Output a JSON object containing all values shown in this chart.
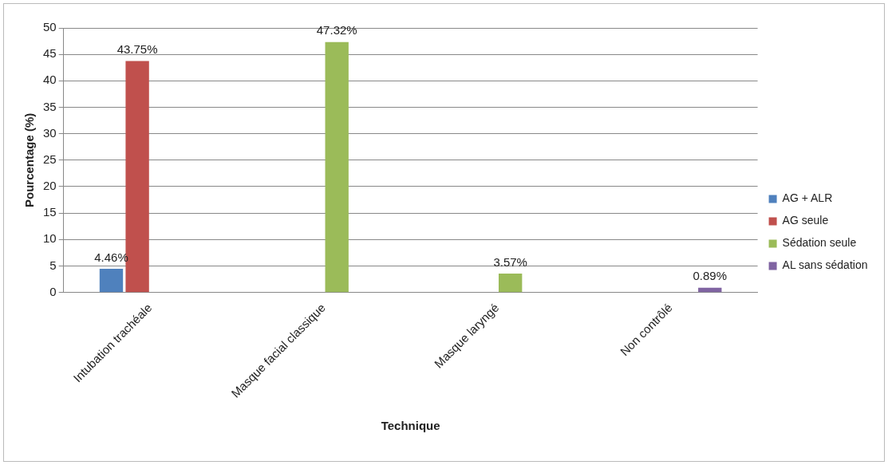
{
  "chart_data": {
    "type": "bar",
    "xlabel": "Technique",
    "ylabel": "Pourcentage (%)",
    "categories": [
      "Intubation trachéale",
      "Masque facial classique",
      "Masque laryngé",
      "Non contrôlé"
    ],
    "series": [
      {
        "name": "AG + ALR",
        "color": "#4f81bd",
        "values": [
          4.46,
          null,
          null,
          null
        ],
        "value_labels": [
          "4.46%",
          null,
          null,
          null
        ]
      },
      {
        "name": "AG seule",
        "color": "#c0504d",
        "values": [
          43.75,
          null,
          null,
          null
        ],
        "value_labels": [
          "43.75%",
          null,
          null,
          null
        ]
      },
      {
        "name": "Sédation seule",
        "color": "#9bbb59",
        "values": [
          null,
          47.32,
          3.57,
          null
        ],
        "value_labels": [
          null,
          "47.32%",
          "3.57%",
          null
        ]
      },
      {
        "name": "AL sans sédation",
        "color": "#8064a2",
        "values": [
          null,
          null,
          null,
          0.89
        ],
        "value_labels": [
          null,
          null,
          null,
          "0.89%"
        ]
      }
    ],
    "ylim": [
      0,
      50
    ],
    "yticks": [
      0,
      5,
      10,
      15,
      20,
      25,
      30,
      35,
      40,
      45,
      50
    ],
    "grid": "y",
    "legend": "right"
  }
}
